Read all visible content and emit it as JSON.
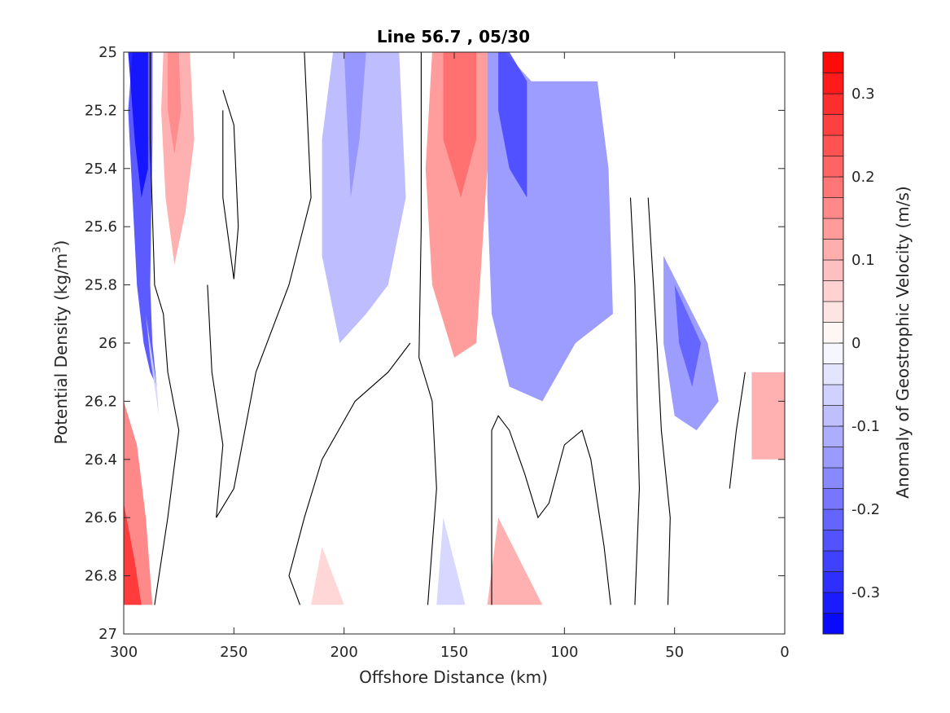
{
  "chart_data": {
    "type": "contour",
    "title": "Line 56.7 , 05/30",
    "xlabel": "Offshore Distance (km)",
    "ylabel_main": "Potential Density (kg/m",
    "ylabel_sup": "3",
    "ylabel_close": ")",
    "xlim": [
      300,
      0
    ],
    "ylim": [
      27,
      25
    ],
    "x_reversed": true,
    "y_reversed": true,
    "xticks": [
      {
        "value": 300,
        "label": "300"
      },
      {
        "value": 250,
        "label": "250"
      },
      {
        "value": 200,
        "label": "200"
      },
      {
        "value": 150,
        "label": "150"
      },
      {
        "value": 100,
        "label": "100"
      },
      {
        "value": 50,
        "label": "50"
      },
      {
        "value": 0,
        "label": "0"
      }
    ],
    "yticks": [
      {
        "value": 25,
        "label": "25"
      },
      {
        "value": 25.2,
        "label": "25.2"
      },
      {
        "value": 25.4,
        "label": "25.4"
      },
      {
        "value": 25.6,
        "label": "25.6"
      },
      {
        "value": 25.8,
        "label": "25.8"
      },
      {
        "value": 26,
        "label": "26"
      },
      {
        "value": 26.2,
        "label": "26.2"
      },
      {
        "value": 26.4,
        "label": "26.4"
      },
      {
        "value": 26.6,
        "label": "26.6"
      },
      {
        "value": 26.8,
        "label": "26.8"
      },
      {
        "value": 27,
        "label": "27"
      }
    ],
    "colorbar": {
      "label": "Anomaly of Geostrophic Velocity (m/s)",
      "clim": [
        -0.35,
        0.35
      ],
      "levels": 28,
      "colormap": "blue-white-red",
      "low_color": "#0000ff",
      "mid_color": "#ffffff",
      "high_color": "#ff0000",
      "ticks": [
        {
          "value": 0.3,
          "label": "0.3"
        },
        {
          "value": 0.2,
          "label": "0.2"
        },
        {
          "value": 0.1,
          "label": "0.1"
        },
        {
          "value": 0,
          "label": "0"
        },
        {
          "value": -0.1,
          "label": "-0.1"
        },
        {
          "value": -0.2,
          "label": "-0.2"
        },
        {
          "value": -0.3,
          "label": "-0.3"
        }
      ]
    },
    "filled_regions": [
      {
        "name": "cyclonic-jet-offshore",
        "value": -0.25,
        "points": [
          [
            296,
            25
          ],
          [
            287,
            25
          ],
          [
            287,
            25.3
          ],
          [
            288,
            25.8
          ],
          [
            287,
            26
          ],
          [
            285,
            26.15
          ],
          [
            288,
            26.1
          ],
          [
            291,
            26
          ],
          [
            294,
            25.8
          ],
          [
            296,
            25.5
          ],
          [
            298,
            25.2
          ]
        ]
      },
      {
        "name": "blue-core-offshore",
        "value": -0.33,
        "points": [
          [
            298,
            25
          ],
          [
            289,
            25
          ],
          [
            289,
            25.4
          ],
          [
            292,
            25.5
          ],
          [
            295,
            25.3
          ]
        ]
      },
      {
        "name": "weak-blue-offshore",
        "value": -0.06,
        "points": [
          [
            290,
            25.9
          ],
          [
            285,
            26.15
          ],
          [
            284,
            26.25
          ],
          [
            288,
            26.05
          ]
        ]
      },
      {
        "name": "red-offshore-upper",
        "value": 0.12,
        "points": [
          [
            282,
            25
          ],
          [
            270,
            25
          ],
          [
            268,
            25.3
          ],
          [
            272,
            25.55
          ],
          [
            277,
            25.73
          ],
          [
            281,
            25.5
          ],
          [
            283,
            25.2
          ]
        ]
      },
      {
        "name": "red-offshore-upper-core",
        "value": 0.16,
        "points": [
          [
            280,
            25
          ],
          [
            275,
            25
          ],
          [
            274,
            25.2
          ],
          [
            277,
            25.35
          ],
          [
            280,
            25.2
          ]
        ]
      },
      {
        "name": "red-offshore-deep",
        "value": 0.18,
        "points": [
          [
            300,
            26.2
          ],
          [
            300,
            26.9
          ],
          [
            287,
            26.9
          ],
          [
            290,
            26.6
          ],
          [
            294,
            26.35
          ]
        ]
      },
      {
        "name": "red-offshore-deep-core",
        "value": 0.28,
        "points": [
          [
            300,
            26.55
          ],
          [
            300,
            26.9
          ],
          [
            292,
            26.9
          ],
          [
            295,
            26.75
          ]
        ]
      },
      {
        "name": "blue-200",
        "value": -0.1,
        "points": [
          [
            205,
            25
          ],
          [
            175,
            25
          ],
          [
            172,
            25.5
          ],
          [
            180,
            25.8
          ],
          [
            190,
            25.9
          ],
          [
            202,
            26
          ],
          [
            210,
            25.7
          ],
          [
            210,
            25.3
          ]
        ]
      },
      {
        "name": "blue-200-core",
        "value": -0.15,
        "points": [
          [
            200,
            25
          ],
          [
            190,
            25
          ],
          [
            193,
            25.3
          ],
          [
            197,
            25.5
          ]
        ]
      },
      {
        "name": "red-150",
        "value": 0.15,
        "points": [
          [
            160,
            25
          ],
          [
            135,
            25
          ],
          [
            135,
            25.4
          ],
          [
            140,
            26
          ],
          [
            150,
            26.05
          ],
          [
            160,
            25.8
          ],
          [
            163,
            25.4
          ]
        ]
      },
      {
        "name": "red-150-core",
        "value": 0.2,
        "points": [
          [
            155,
            25
          ],
          [
            140,
            25
          ],
          [
            140,
            25.3
          ],
          [
            147,
            25.5
          ],
          [
            155,
            25.3
          ]
        ]
      },
      {
        "name": "blue-120",
        "value": -0.15,
        "points": [
          [
            135,
            25
          ],
          [
            127,
            25
          ],
          [
            115,
            25.1
          ],
          [
            85,
            25.1
          ],
          [
            80,
            25.4
          ],
          [
            78,
            25.9
          ],
          [
            95,
            26
          ],
          [
            110,
            26.2
          ],
          [
            125,
            26.15
          ],
          [
            133,
            25.9
          ],
          [
            135,
            25.5
          ]
        ]
      },
      {
        "name": "blue-120-core",
        "value": -0.25,
        "points": [
          [
            130,
            25
          ],
          [
            125,
            25
          ],
          [
            117,
            25.1
          ],
          [
            117,
            25.5
          ],
          [
            125,
            25.4
          ],
          [
            130,
            25.2
          ]
        ]
      },
      {
        "name": "blue-near-coast",
        "value": -0.15,
        "points": [
          [
            55,
            25.7
          ],
          [
            35,
            26
          ],
          [
            30,
            26.2
          ],
          [
            40,
            26.3
          ],
          [
            50,
            26.25
          ],
          [
            55,
            26
          ]
        ]
      },
      {
        "name": "blue-near-coast-core",
        "value": -0.22,
        "points": [
          [
            50,
            25.8
          ],
          [
            38,
            26
          ],
          [
            42,
            26.15
          ],
          [
            48,
            26
          ]
        ]
      },
      {
        "name": "red-coastal",
        "value": 0.12,
        "points": [
          [
            15,
            26.1
          ],
          [
            0,
            26.1
          ],
          [
            0,
            26.4
          ],
          [
            15,
            26.4
          ]
        ]
      },
      {
        "name": "red-deep-130",
        "value": 0.12,
        "points": [
          [
            130,
            26.6
          ],
          [
            110,
            26.9
          ],
          [
            135,
            26.9
          ]
        ]
      },
      {
        "name": "red-deep-200",
        "value": 0.06,
        "points": [
          [
            210,
            26.7
          ],
          [
            200,
            26.9
          ],
          [
            215,
            26.9
          ]
        ]
      },
      {
        "name": "blue-deep-150",
        "value": -0.06,
        "points": [
          [
            155,
            26.6
          ],
          [
            145,
            26.9
          ],
          [
            158,
            26.9
          ]
        ]
      }
    ],
    "zero_contours": [
      {
        "name": "zero-contour-offshore",
        "points": [
          [
            288,
            25
          ],
          [
            288,
            25.3
          ],
          [
            286,
            25.8
          ],
          [
            282,
            25.9
          ],
          [
            280,
            26.1
          ],
          [
            275,
            26.3
          ],
          [
            280,
            26.6
          ],
          [
            284,
            26.8
          ],
          [
            286,
            26.9
          ]
        ]
      },
      {
        "name": "zero-contour-lens",
        "points": [
          [
            255,
            25.13
          ],
          [
            250,
            25.25
          ],
          [
            248,
            25.6
          ],
          [
            250,
            25.78
          ],
          [
            255,
            25.5
          ],
          [
            255,
            25.2
          ]
        ]
      },
      {
        "name": "zero-contour-230",
        "points": [
          [
            218,
            25
          ],
          [
            215,
            25.5
          ],
          [
            225,
            25.8
          ],
          [
            240,
            26.1
          ],
          [
            250,
            26.5
          ],
          [
            258,
            26.6
          ],
          [
            255,
            26.35
          ],
          [
            260,
            26.1
          ],
          [
            262,
            25.8
          ]
        ]
      },
      {
        "name": "zero-contour-200",
        "points": [
          [
            170,
            26
          ],
          [
            180,
            26.1
          ],
          [
            195,
            26.2
          ],
          [
            210,
            26.4
          ],
          [
            218,
            26.6
          ],
          [
            225,
            26.8
          ],
          [
            220,
            26.9
          ]
        ]
      },
      {
        "name": "zero-contour-165",
        "points": [
          [
            165,
            25
          ],
          [
            165,
            25.6
          ],
          [
            166,
            26.05
          ],
          [
            160,
            26.2
          ],
          [
            158,
            26.5
          ],
          [
            162,
            26.9
          ]
        ]
      },
      {
        "name": "zero-contour-135",
        "points": [
          [
            133,
            26.9
          ],
          [
            133,
            26.3
          ],
          [
            130,
            26.25
          ],
          [
            125,
            26.3
          ],
          [
            118,
            26.45
          ],
          [
            112,
            26.6
          ],
          [
            107,
            26.55
          ],
          [
            100,
            26.35
          ],
          [
            92,
            26.3
          ],
          [
            88,
            26.4
          ],
          [
            82,
            26.7
          ],
          [
            79,
            26.9
          ]
        ]
      },
      {
        "name": "zero-contour-65",
        "points": [
          [
            70,
            25.5
          ],
          [
            68,
            25.8
          ],
          [
            67,
            26.2
          ],
          [
            66,
            26.5
          ],
          [
            68,
            26.9
          ]
        ]
      },
      {
        "name": "zero-contour-60",
        "points": [
          [
            62,
            25.5
          ],
          [
            58,
            26
          ],
          [
            56,
            26.3
          ],
          [
            52,
            26.6
          ],
          [
            53,
            26.9
          ]
        ]
      },
      {
        "name": "zero-contour-30",
        "points": [
          [
            18,
            26.1
          ],
          [
            22,
            26.3
          ],
          [
            25,
            26.5
          ]
        ]
      }
    ]
  }
}
